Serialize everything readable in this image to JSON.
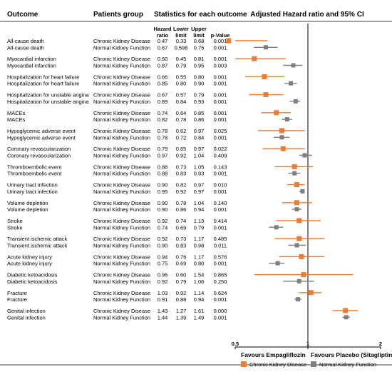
{
  "headers": {
    "outcome": "Outcome",
    "group": "Patients group",
    "stats": "Statistics for each outcome",
    "plot": "Adjusted Hazard ratio and 95% CI",
    "hr_line1": "Hazard",
    "hr_line2": "ratio",
    "lo_line1": "Lower",
    "lo_line2": "limit",
    "up_line1": "Upper",
    "up_line2": "limit",
    "p": "p-Value"
  },
  "colors": {
    "ckd": "#ED7D31",
    "nkf": "#7F7F7F",
    "axis": "#000000"
  },
  "chart_data": {
    "type": "forest",
    "xlabel_left": "Favours Empagliflozin",
    "xlabel_right": "Favours Placebo (Sitagliptin)",
    "xscale": "log",
    "xlim": [
      0.5,
      2
    ],
    "xticks": [
      "0.5",
      "1",
      "2"
    ],
    "reference_line": 1,
    "legend": [
      "Chronic Kidney Disease",
      "Normal Kidney Function"
    ],
    "legend_position": "bottom-right",
    "rows": [
      {
        "outcome": "All-cause death",
        "group": "Chronic Kidney Disease",
        "hr": "0.47",
        "lo": "0.33",
        "up": "0.68",
        "p": "0.001"
      },
      {
        "outcome": "All-cause death",
        "group": "Normal Kidney Function",
        "hr": "0.67",
        "lo": "0.598",
        "up": "0.75",
        "p": "0.001"
      },
      {
        "outcome": "Myocardial infarction",
        "group": "Chronic Kidney Disease",
        "hr": "0.60",
        "lo": "0.45",
        "up": "0.81",
        "p": "0.001"
      },
      {
        "outcome": "Myocardial infarction",
        "group": "Normal Kidney Function",
        "hr": "0.87",
        "lo": "0.79",
        "up": "0.95",
        "p": "0.003"
      },
      {
        "outcome": "Hospitalization for heart failure",
        "group": "Chronic Kidney Disease",
        "hr": "0.66",
        "lo": "0.55",
        "up": "0.80",
        "p": "0.001"
      },
      {
        "outcome": "Hospitalization for heart failure",
        "group": "Normal Kidney Function",
        "hr": "0.85",
        "lo": "0.80",
        "up": "0.90",
        "p": "0.001"
      },
      {
        "outcome": "Hospitalization for unstable angina",
        "group": "Chronic Kidney Disease",
        "hr": "0.67",
        "lo": "0.57",
        "up": "0.79",
        "p": "0.001"
      },
      {
        "outcome": "Hospitalization for unstable angina",
        "group": "Normal Kidney Function",
        "hr": "0.89",
        "lo": "0.84",
        "up": "0.93",
        "p": "0.001"
      },
      {
        "outcome": "MACEs",
        "group": "Chronic Kidney Disease",
        "hr": "0.74",
        "lo": "0.64",
        "up": "0.85",
        "p": "0.001"
      },
      {
        "outcome": "MACEs",
        "group": "Normal Kidney Function",
        "hr": "0.82",
        "lo": "0.78",
        "up": "0.86",
        "p": "0.001"
      },
      {
        "outcome": "Hypoglycemic adverse event",
        "group": "Chronic Kidney Disease",
        "hr": "0.78",
        "lo": "0.62",
        "up": "0.97",
        "p": "0.025"
      },
      {
        "outcome": "Hypoglycemic adverse event",
        "group": "Normal Kidney Function",
        "hr": "0.78",
        "lo": "0.72",
        "up": "0.84",
        "p": "0.001"
      },
      {
        "outcome": "Coronary revascularization",
        "group": "Chronic Kidney Disease",
        "hr": "0.79",
        "lo": "0.65",
        "up": "0.97",
        "p": "0.022"
      },
      {
        "outcome": "Coronary revascularization",
        "group": "Normal Kidney Function",
        "hr": "0.97",
        "lo": "0.92",
        "up": "1.04",
        "p": "0.409"
      },
      {
        "outcome": "Thromboembolic event",
        "group": "Chronic Kidney Disease",
        "hr": "0.88",
        "lo": "0.73",
        "up": "1.05",
        "p": "0.143"
      },
      {
        "outcome": "Thromboembolic event",
        "group": "Normal Kidney Function",
        "hr": "0.88",
        "lo": "0.83",
        "up": "0.93",
        "p": "0.001"
      },
      {
        "outcome": "Urinary tract infection",
        "group": "Chronic Kidney Disease",
        "hr": "0.90",
        "lo": "0.82",
        "up": "0.97",
        "p": "0.010"
      },
      {
        "outcome": "Urinary tract infection",
        "group": "Normal Kidney Function",
        "hr": "0.95",
        "lo": "0.92",
        "up": "0.97",
        "p": "0.001"
      },
      {
        "outcome": "Volume depletion",
        "group": "Chronic Kidney Disease",
        "hr": "0.90",
        "lo": "0.78",
        "up": "1.04",
        "p": "0.140"
      },
      {
        "outcome": "Volume depletion",
        "group": "Normal Kidney Function",
        "hr": "0.90",
        "lo": "0.86",
        "up": "0.94",
        "p": "0.001"
      },
      {
        "outcome": "Stroke",
        "group": "Chronic Kidney Disease",
        "hr": "0.92",
        "lo": "0.74",
        "up": "1.13",
        "p": "0.414"
      },
      {
        "outcome": "Stroke",
        "group": "Normal Kidney Function",
        "hr": "0.74",
        "lo": "0.69",
        "up": "0.79",
        "p": "0.001"
      },
      {
        "outcome": "Transient ischemic attack",
        "group": "Chronic Kidney Disease",
        "hr": "0.92",
        "lo": "0.73",
        "up": "1.17",
        "p": "0.485"
      },
      {
        "outcome": "Transient ischemic attack",
        "group": "Normal Kidney Function",
        "hr": "0.90",
        "lo": "0.83",
        "up": "0.98",
        "p": "0.011"
      },
      {
        "outcome": "Acute kidney injury",
        "group": "Chronic Kidney Disease",
        "hr": "0.94",
        "lo": "0.76",
        "up": "1.17",
        "p": "0.576"
      },
      {
        "outcome": "Acute kidney injury",
        "group": "Normal Kidney Function",
        "hr": "0.75",
        "lo": "0.69",
        "up": "0.80",
        "p": "0.001"
      },
      {
        "outcome": "Diabetic ketoacidosis",
        "group": "Chronic Kidney Disease",
        "hr": "0.96",
        "lo": "0.60",
        "up": "1.54",
        "p": "0.865"
      },
      {
        "outcome": "Diabetic ketoacidosis",
        "group": "Normal Kidney Function",
        "hr": "0.92",
        "lo": "0.79",
        "up": "1.06",
        "p": "0.250"
      },
      {
        "outcome": "Fracture",
        "group": "Chronic Kidney Disease",
        "hr": "1.03",
        "lo": "0.92",
        "up": "1.14",
        "p": "0.624"
      },
      {
        "outcome": "Fracture",
        "group": "Normal Kidney Function",
        "hr": "0.91",
        "lo": "0.88",
        "up": "0.94",
        "p": "0.001"
      },
      {
        "outcome": "Genital infection",
        "group": "Chronic Kidney Disease",
        "hr": "1.43",
        "lo": "1.27",
        "up": "1.61",
        "p": "0.000"
      },
      {
        "outcome": "Genital infection",
        "group": "Normal Kidney Function",
        "hr": "1.44",
        "lo": "1.39",
        "up": "1.49",
        "p": "0.001"
      }
    ]
  }
}
